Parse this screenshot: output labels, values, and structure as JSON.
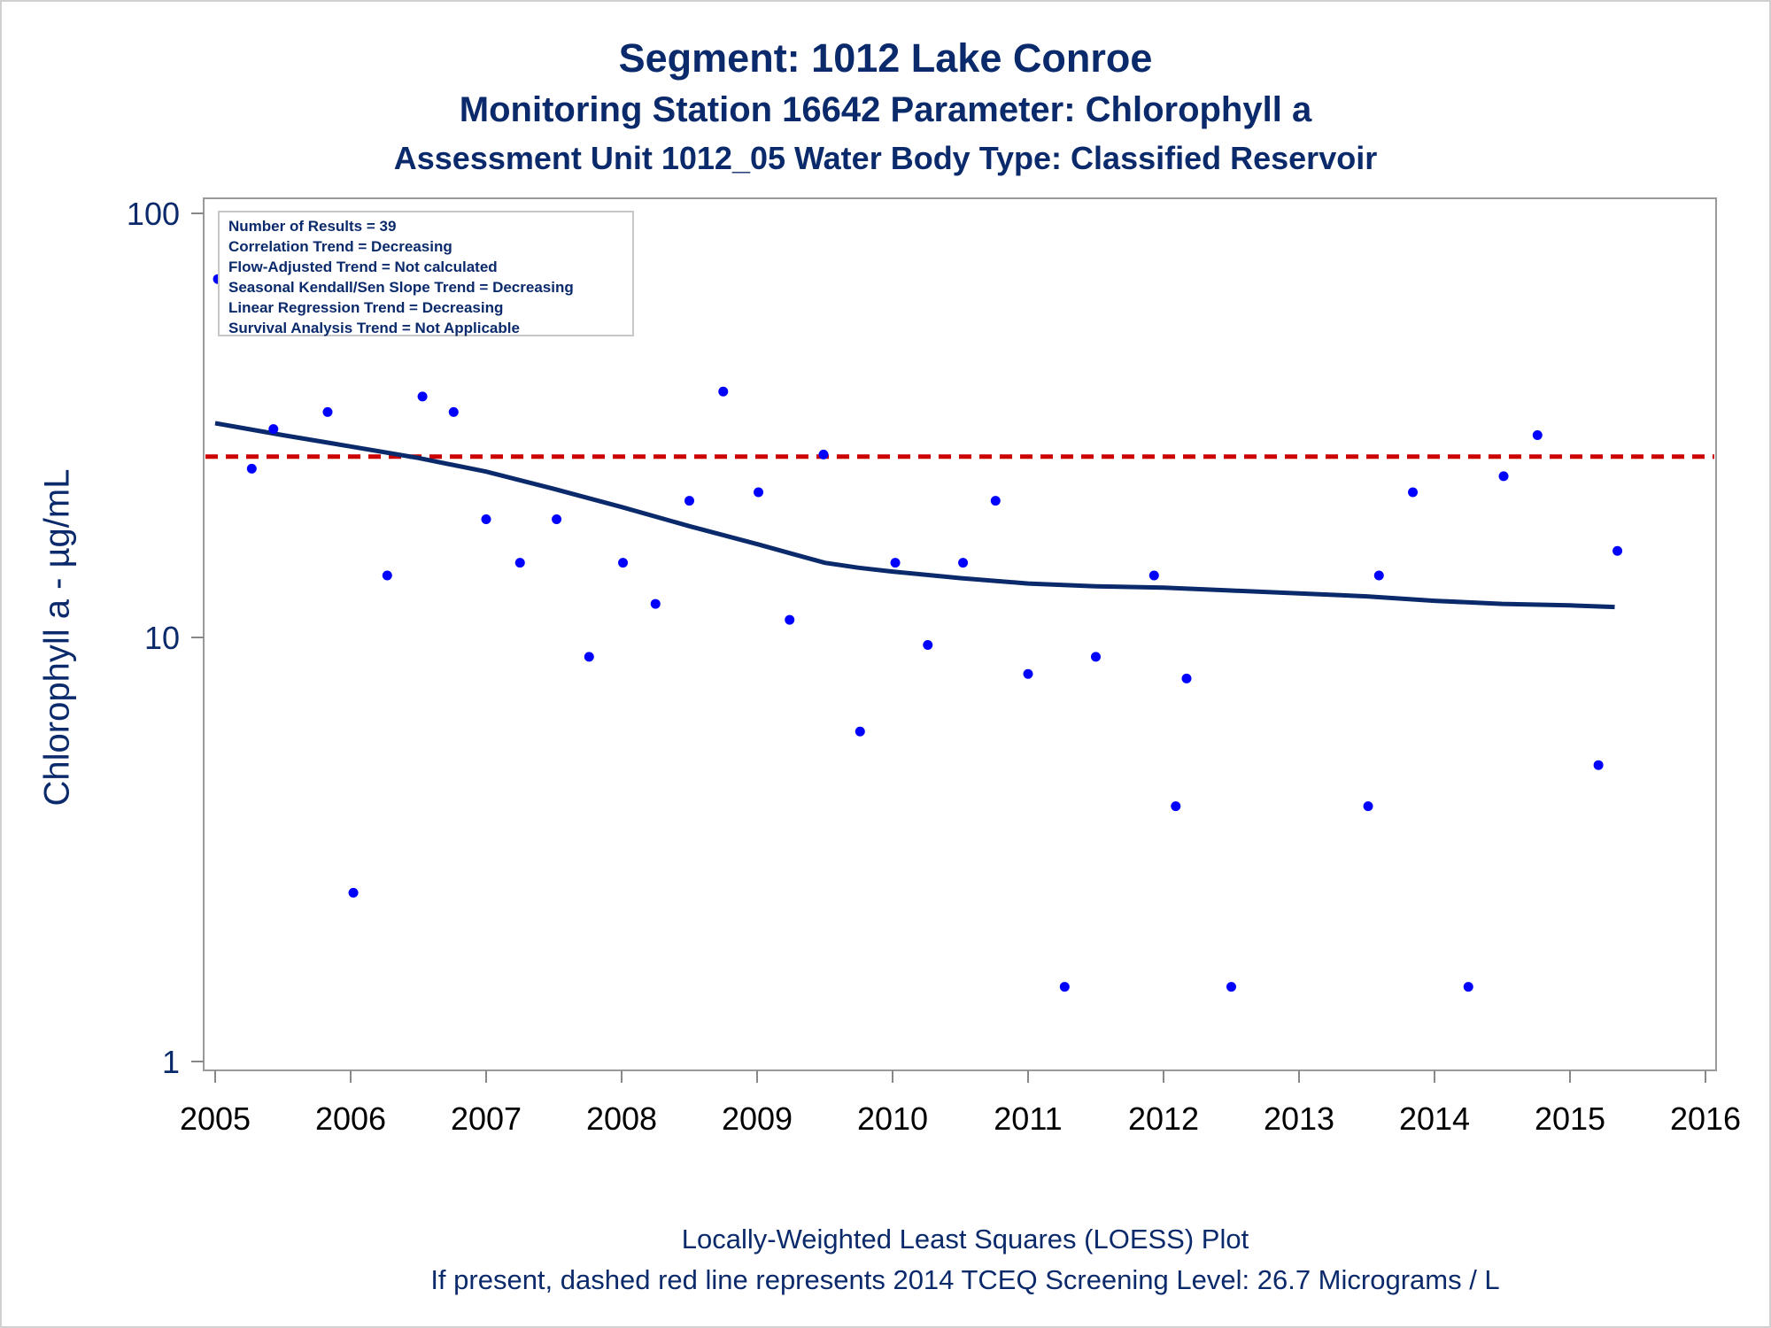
{
  "title": "Segment: 1012  Lake Conroe",
  "subtitle1": "Monitoring Station 16642 Parameter: Chlorophyll a",
  "subtitle2": "Assessment Unit 1012_05   Water Body Type: Classified Reservoir",
  "legend_box": [
    "Number of Results = 39",
    "Correlation Trend = Decreasing",
    "Flow-Adjusted Trend = Not calculated",
    "Seasonal Kendall/Sen Slope Trend = Decreasing",
    "Linear Regression Trend = Decreasing",
    "Survival Analysis Trend = Not Applicable"
  ],
  "footnote1": "Locally-Weighted Least Squares (LOESS) Plot",
  "footnote2": "If present, dashed red line represents 2014 TCEQ Screening Level: 26.7 Micrograms / L",
  "colors": {
    "text": "#0b2a6b",
    "points": "#0000ff",
    "loess": "#0b2a6b",
    "screening_line": "#cc0000",
    "axis": "#888888"
  },
  "chart_data": {
    "type": "scatter",
    "title": "Segment: 1012  Lake Conroe",
    "ylabel": "Chlorophyll a -  µg/mL",
    "xlabel": "",
    "y_scale": "log",
    "ylim": [
      1,
      100
    ],
    "xlim": [
      2005,
      2016
    ],
    "x_ticks": [
      "2005",
      "2006",
      "2007",
      "2008",
      "2009",
      "2010",
      "2011",
      "2012",
      "2013",
      "2014",
      "2015",
      "2016"
    ],
    "y_ticks": [
      "1",
      "10",
      "100"
    ],
    "grid": false,
    "screening_level": 26.7,
    "series": [
      {
        "kind": "points",
        "x": [
          2005.02,
          2005.27,
          2005.43,
          2005.83,
          2006.02,
          2006.27,
          2006.53,
          2006.76,
          2007.0,
          2007.25,
          2007.52,
          2007.76,
          2008.01,
          2008.25,
          2008.5,
          2008.75,
          2009.01,
          2009.24,
          2009.49,
          2009.76,
          2010.02,
          2010.26,
          2010.52,
          2010.76,
          2011.0,
          2011.27,
          2011.5,
          2011.93,
          2012.09,
          2012.17,
          2012.5,
          2013.51,
          2013.59,
          2013.84,
          2014.25,
          2014.51,
          2014.76,
          2015.21,
          2015.35
        ],
        "y": [
          70,
          25,
          31,
          34,
          2.5,
          14,
          37,
          34,
          19,
          15,
          19,
          9,
          15,
          12,
          21,
          38,
          22,
          11,
          27,
          6,
          15,
          9.6,
          15,
          21,
          8.2,
          1.5,
          9,
          14,
          4,
          8,
          1.5,
          4,
          14,
          22,
          1.5,
          24,
          30,
          5,
          16
        ]
      },
      {
        "kind": "loess",
        "x": [
          2005.0,
          2005.5,
          2006.0,
          2006.5,
          2007.0,
          2007.5,
          2008.0,
          2008.5,
          2009.0,
          2009.5,
          2009.75,
          2010.0,
          2010.5,
          2011.0,
          2011.5,
          2012.0,
          2012.5,
          2013.0,
          2013.5,
          2014.0,
          2014.5,
          2015.0,
          2015.33
        ],
        "y": [
          32.0,
          30.0,
          28.2,
          26.5,
          24.6,
          22.4,
          20.3,
          18.3,
          16.6,
          15.0,
          14.6,
          14.3,
          13.8,
          13.4,
          13.2,
          13.1,
          12.9,
          12.7,
          12.5,
          12.2,
          12.0,
          11.9,
          11.8
        ]
      }
    ]
  }
}
